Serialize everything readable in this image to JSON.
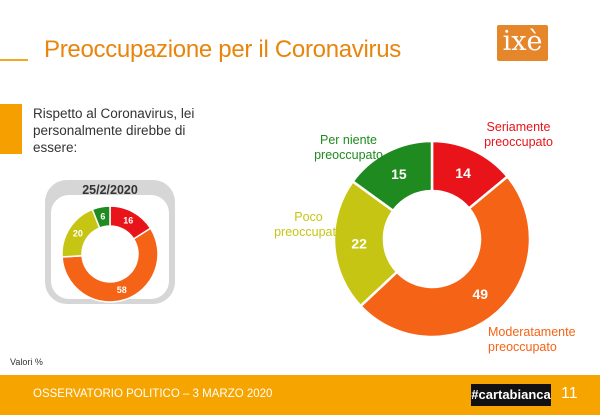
{
  "header": {
    "title": "Preoccupazione per il Coronavirus",
    "logo_text": "ixè"
  },
  "question": "Rispetto al Coronavirus, lei personalmente direbbe di essere:",
  "valori_note": "Valori %",
  "footer": {
    "left_text": "OSSERVATORIO POLITICO – 3 MARZO 2020",
    "badge": "#cartabianca",
    "page_number": "11"
  },
  "colors": {
    "red": "#e8141a",
    "orange": "#f56316",
    "yellow_green": "#c7c514",
    "green": "#1f8a1f",
    "accent": "#f5a000"
  },
  "chart_data": [
    {
      "type": "pie",
      "variant": "donut",
      "title": "25/2/2020",
      "categories": [
        "Seriamente preoccupato",
        "Moderatamente preoccupato",
        "Poco preoccupato",
        "Per niente preoccupato"
      ],
      "values": [
        16,
        58,
        20,
        6
      ]
    },
    {
      "type": "pie",
      "variant": "donut",
      "categories": [
        "Seriamente preoccupato",
        "Moderatamente preoccupato",
        "Poco preoccupato",
        "Per niente preoccupato"
      ],
      "labels": [
        "Seriamente\npreoccupato",
        "Moderatamente\npreoccupato",
        "Poco\npreoccupato",
        "Per niente\npreoccupato"
      ],
      "values": [
        14,
        49,
        22,
        15
      ]
    }
  ]
}
